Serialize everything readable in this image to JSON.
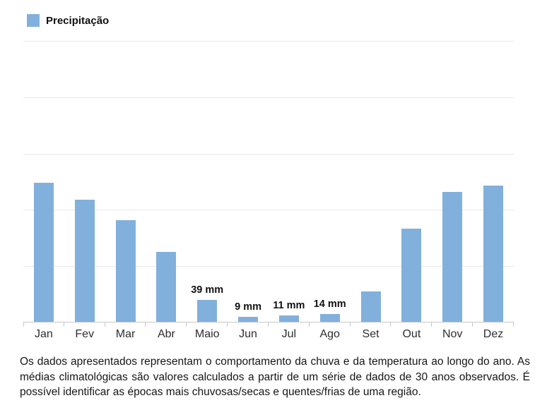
{
  "legend": {
    "label": "Precipitação",
    "swatch_color": "#82b0dc"
  },
  "chart_data": {
    "type": "bar",
    "title": "",
    "categories": [
      "Jan",
      "Fev",
      "Mar",
      "Abr",
      "Maio",
      "Jun",
      "Jul",
      "Ago",
      "Set",
      "Out",
      "Nov",
      "Dez"
    ],
    "series": [
      {
        "name": "Precipitação",
        "values": [
          247,
          217,
          180,
          124,
          39,
          9,
          11,
          14,
          54,
          166,
          230,
          242
        ]
      }
    ],
    "bar_value_labels": [
      "",
      "",
      "",
      "",
      "39 mm",
      "9 mm",
      "11 mm",
      "14 mm",
      "",
      "",
      "",
      ""
    ],
    "unit": "mm",
    "xlabel": "",
    "ylabel": "",
    "ylim": [
      0,
      500
    ],
    "gridline_step": 100,
    "grid": true,
    "legend_position": "top-left",
    "bar_color": "#82b0dc",
    "note": "values for Jan-Abr and Set-Dez estimated from gridlines; Maio-Ago labeled on chart"
  },
  "footer": {
    "text": "Os dados apresentados representam o comportamento da chuva e da temperatura ao longo do ano. As médias climatológicas são valores calculados a partir de um série de dados de 30 anos observados. É possível identificar as épocas mais chuvosas/secas e quentes/frias de uma região."
  },
  "colors": {
    "bar": "#82b0dc",
    "gridline": "#e9e9e9",
    "axis": "#c9c9c9",
    "value_label_text": "#111111",
    "month_label_text": "#2e2e2e",
    "footer_text": "#161616"
  }
}
